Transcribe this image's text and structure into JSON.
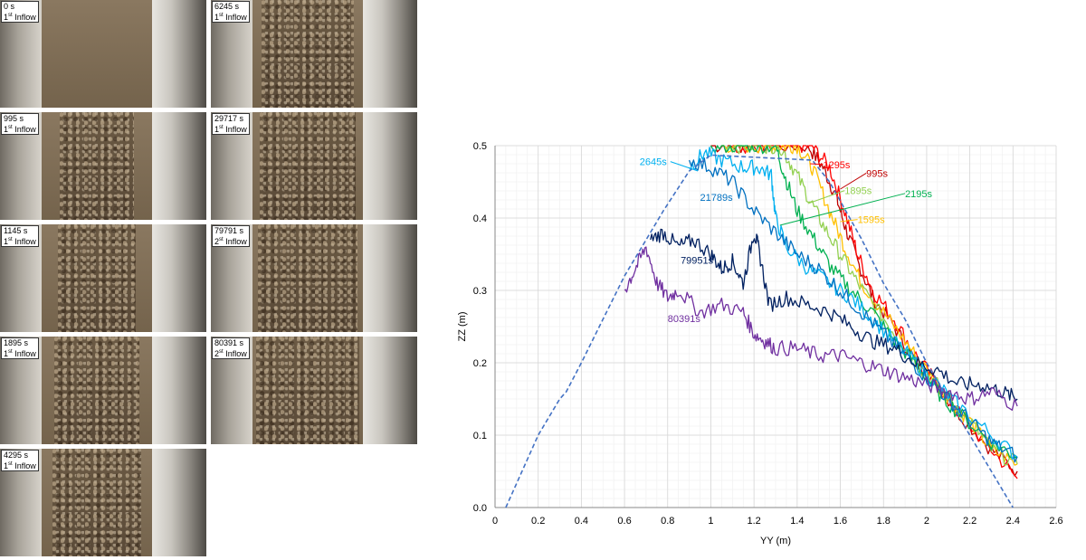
{
  "photos": [
    {
      "time": "0 s",
      "inflow_num": "1",
      "inflow_sup": "st",
      "inflow_word": "Inflow",
      "deposit": 0.0
    },
    {
      "time": "6245 s",
      "inflow_num": "1",
      "inflow_sup": "st",
      "inflow_word": "Inflow",
      "deposit": 0.75
    },
    {
      "time": "995 s",
      "inflow_num": "1",
      "inflow_sup": "st",
      "inflow_word": "Inflow",
      "deposit": 0.5
    },
    {
      "time": "29717 s",
      "inflow_num": "1",
      "inflow_sup": "st",
      "inflow_word": "Inflow",
      "deposit": 0.8
    },
    {
      "time": "1145 s",
      "inflow_num": "1",
      "inflow_sup": "st",
      "inflow_word": "Inflow",
      "deposit": 0.55
    },
    {
      "time": "79791 s",
      "inflow_num": "2",
      "inflow_sup": "st",
      "inflow_word": "Inflow",
      "deposit": 0.85
    },
    {
      "time": "1895 s",
      "inflow_num": "1",
      "inflow_sup": "st",
      "inflow_word": "Inflow",
      "deposit": 0.65
    },
    {
      "time": "80391 s",
      "inflow_num": "2",
      "inflow_sup": "st",
      "inflow_word": "Inflow",
      "deposit": 0.9
    },
    {
      "time": "4295 s",
      "inflow_num": "1",
      "inflow_sup": "st",
      "inflow_word": "Inflow",
      "deposit": 0.7
    }
  ],
  "chart_data": {
    "type": "line",
    "xlabel": "YY (m)",
    "ylabel": "ZZ (m)",
    "xlim": [
      0,
      2.6
    ],
    "ylim": [
      0,
      0.5
    ],
    "xticks": [
      "0",
      "0.2",
      "0.4",
      "0.6",
      "0.8",
      "1",
      "1.2",
      "1.4",
      "1.6",
      "1.8",
      "2",
      "2.2",
      "2.4",
      "2.6"
    ],
    "yticks": [
      "0.0",
      "0.1",
      "0.2",
      "0.3",
      "0.4",
      "0.5"
    ],
    "grid": true,
    "initial_profile": {
      "color": "#4472c4",
      "style": "dashed",
      "x": [
        0.05,
        0.2,
        0.3,
        0.33,
        0.4,
        0.5,
        0.6,
        0.68,
        0.78,
        0.9,
        1.0,
        1.47,
        1.55,
        1.7,
        1.8,
        1.9,
        2.0,
        2.2,
        2.4
      ],
      "y": [
        0.0,
        0.1,
        0.15,
        0.16,
        0.2,
        0.26,
        0.32,
        0.36,
        0.41,
        0.465,
        0.487,
        0.48,
        0.45,
        0.37,
        0.31,
        0.26,
        0.2,
        0.1,
        0.0
      ]
    },
    "series": [
      {
        "name": "995s",
        "color": "#c00000",
        "x": [
          1.0,
          1.1,
          1.2,
          1.3,
          1.45,
          1.52,
          1.58,
          1.62,
          1.68,
          1.75,
          1.85,
          1.95,
          2.05,
          2.15,
          2.3,
          2.42
        ],
        "y": [
          0.5,
          0.5,
          0.5,
          0.5,
          0.5,
          0.47,
          0.43,
          0.39,
          0.34,
          0.29,
          0.25,
          0.2,
          0.17,
          0.13,
          0.08,
          0.05
        ]
      },
      {
        "name": "1295s",
        "color": "#ff0000",
        "x": [
          1.1,
          1.2,
          1.3,
          1.4,
          1.47,
          1.55,
          1.62,
          1.68,
          1.75,
          1.85,
          1.95,
          2.05,
          2.15,
          2.3,
          2.42
        ],
        "y": [
          0.5,
          0.5,
          0.5,
          0.5,
          0.5,
          0.47,
          0.41,
          0.35,
          0.3,
          0.26,
          0.21,
          0.17,
          0.13,
          0.08,
          0.04
        ]
      },
      {
        "name": "1595s",
        "color": "#ffc000",
        "x": [
          1.05,
          1.15,
          1.25,
          1.33,
          1.4,
          1.47,
          1.55,
          1.62,
          1.7,
          1.8,
          1.9,
          2.0,
          2.1,
          2.2,
          2.3,
          2.42
        ],
        "y": [
          0.5,
          0.5,
          0.5,
          0.5,
          0.5,
          0.47,
          0.41,
          0.36,
          0.31,
          0.27,
          0.23,
          0.19,
          0.15,
          0.12,
          0.08,
          0.06
        ]
      },
      {
        "name": "1895s",
        "color": "#92d050",
        "x": [
          1.05,
          1.15,
          1.25,
          1.32,
          1.38,
          1.45,
          1.52,
          1.6,
          1.68,
          1.78,
          1.88,
          1.98,
          2.08,
          2.2,
          2.3,
          2.42
        ],
        "y": [
          0.5,
          0.5,
          0.5,
          0.5,
          0.47,
          0.43,
          0.39,
          0.35,
          0.31,
          0.27,
          0.23,
          0.19,
          0.16,
          0.12,
          0.08,
          0.06
        ]
      },
      {
        "name": "2195s",
        "color": "#00b050",
        "x": [
          1.0,
          1.1,
          1.2,
          1.3,
          1.34,
          1.4,
          1.48,
          1.56,
          1.65,
          1.75,
          1.85,
          1.95,
          2.05,
          2.15,
          2.3,
          2.42
        ],
        "y": [
          0.5,
          0.5,
          0.5,
          0.5,
          0.46,
          0.41,
          0.37,
          0.33,
          0.3,
          0.27,
          0.23,
          0.2,
          0.16,
          0.13,
          0.09,
          0.07
        ]
      },
      {
        "name": "2645s",
        "color": "#00b0f0",
        "x": [
          0.9,
          0.97,
          1.05,
          1.15,
          1.22,
          1.28,
          1.3,
          1.35,
          1.45,
          1.55,
          1.65,
          1.75,
          1.85,
          1.95,
          2.05,
          2.15,
          2.3,
          2.42
        ],
        "y": [
          0.47,
          0.49,
          0.48,
          0.47,
          0.47,
          0.46,
          0.4,
          0.36,
          0.33,
          0.31,
          0.29,
          0.26,
          0.23,
          0.2,
          0.17,
          0.14,
          0.1,
          0.07
        ]
      },
      {
        "name": "21789s",
        "color": "#0070c0",
        "x": [
          0.9,
          1.0,
          1.1,
          1.2,
          1.3,
          1.4,
          1.5,
          1.6,
          1.7,
          1.8,
          1.9,
          2.0,
          2.1,
          2.2,
          2.3,
          2.42
        ],
        "y": [
          0.48,
          0.47,
          0.45,
          0.41,
          0.38,
          0.35,
          0.33,
          0.3,
          0.27,
          0.24,
          0.21,
          0.18,
          0.15,
          0.12,
          0.09,
          0.07
        ]
      },
      {
        "name": "79951s",
        "color": "#002060",
        "x": [
          0.72,
          0.78,
          0.85,
          0.92,
          1.0,
          1.05,
          1.1,
          1.15,
          1.2,
          1.22,
          1.27,
          1.35,
          1.45,
          1.55,
          1.65,
          1.75,
          1.85,
          1.95,
          2.05,
          2.15,
          2.25,
          2.35,
          2.42
        ],
        "y": [
          0.37,
          0.38,
          0.36,
          0.37,
          0.35,
          0.33,
          0.34,
          0.31,
          0.38,
          0.36,
          0.28,
          0.29,
          0.28,
          0.27,
          0.25,
          0.23,
          0.22,
          0.2,
          0.19,
          0.17,
          0.17,
          0.16,
          0.15
        ]
      },
      {
        "name": "80391s",
        "color": "#7030a0",
        "x": [
          0.6,
          0.65,
          0.7,
          0.75,
          0.8,
          0.85,
          0.95,
          1.05,
          1.15,
          1.2,
          1.25,
          1.3,
          1.4,
          1.5,
          1.6,
          1.7,
          1.8,
          1.9,
          2.0,
          2.1,
          2.2,
          2.3,
          2.42
        ],
        "y": [
          0.3,
          0.33,
          0.36,
          0.31,
          0.29,
          0.3,
          0.27,
          0.28,
          0.27,
          0.24,
          0.23,
          0.22,
          0.22,
          0.21,
          0.21,
          0.2,
          0.19,
          0.18,
          0.17,
          0.16,
          0.15,
          0.16,
          0.14
        ]
      }
    ],
    "annotations": [
      {
        "text": "2645s",
        "color": "#00b0f0",
        "x": 0.67,
        "y": 0.473,
        "to_x": 0.94,
        "to_y": 0.465
      },
      {
        "text": "1295s",
        "color": "#ff0000",
        "x": 1.52,
        "y": 0.469,
        "to_x": 1.46,
        "to_y": 0.475
      },
      {
        "text": "995s",
        "color": "#c00000",
        "x": 1.72,
        "y": 0.457,
        "to_x": 1.6,
        "to_y": 0.44
      },
      {
        "text": "1895s",
        "color": "#92d050",
        "x": 1.62,
        "y": 0.433,
        "to_x": 1.45,
        "to_y": 0.42
      },
      {
        "text": "2195s",
        "color": "#00b050",
        "x": 1.9,
        "y": 0.429,
        "to_x": 1.32,
        "to_y": 0.39
      },
      {
        "text": "21789s",
        "color": "#0070c0",
        "x": 0.95,
        "y": 0.424,
        "to_x": null,
        "to_y": null
      },
      {
        "text": "1595s",
        "color": "#ffc000",
        "x": 1.68,
        "y": 0.393,
        "to_x": 1.6,
        "to_y": 0.395
      },
      {
        "text": "79951s",
        "color": "#002060",
        "x": 0.86,
        "y": 0.337,
        "to_x": null,
        "to_y": null
      },
      {
        "text": "80391s",
        "color": "#7030a0",
        "x": 0.8,
        "y": 0.256,
        "to_x": null,
        "to_y": null
      }
    ]
  }
}
